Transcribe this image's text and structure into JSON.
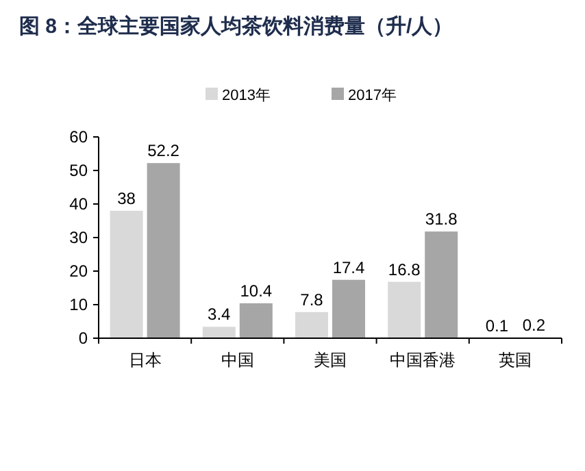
{
  "chart_data": {
    "type": "bar",
    "title": "图 8：全球主要国家人均茶饮料消费量（升/人）",
    "categories": [
      "日本",
      "中国",
      "美国",
      "中国香港",
      "英国"
    ],
    "series": [
      {
        "name": "2013年",
        "color": "#d9d9d9",
        "values": [
          38,
          3.4,
          7.8,
          16.8,
          0.1
        ]
      },
      {
        "name": "2017年",
        "color": "#a6a6a6",
        "values": [
          52.2,
          10.4,
          17.4,
          31.8,
          0.2
        ]
      }
    ],
    "ylim": [
      0,
      60
    ],
    "yticks": [
      0,
      10,
      20,
      30,
      40,
      50,
      60
    ],
    "data_labels": true,
    "legend": "top"
  }
}
